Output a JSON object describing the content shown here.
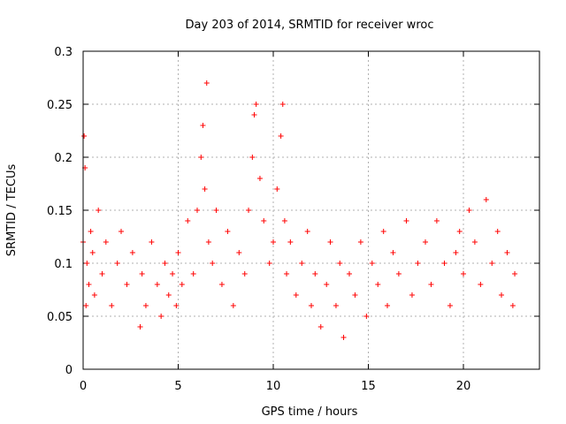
{
  "chart_data": {
    "type": "scatter",
    "title": "Day 203 of 2014, SRMTID for receiver wroc",
    "xlabel": "GPS time / hours",
    "ylabel": "SRMTID / TECUs",
    "xlim": [
      0,
      24
    ],
    "ylim": [
      0,
      0.3
    ],
    "x_ticks": [
      0,
      5,
      10,
      15,
      20
    ],
    "x_tick_labels": [
      "0",
      "5",
      "10",
      "15",
      "20"
    ],
    "y_ticks": [
      0,
      0.05,
      0.1,
      0.15,
      0.2,
      0.25,
      0.3
    ],
    "y_tick_labels": [
      "0",
      "0.05",
      "0.1",
      "0.15",
      "0.2",
      "0.25",
      "0.3"
    ],
    "grid": true,
    "marker": "+",
    "color": "#ff0000",
    "series": [
      {
        "name": "SRMTID",
        "x": [
          0.0,
          0.05,
          0.1,
          0.15,
          0.2,
          0.3,
          0.4,
          0.5,
          0.6,
          0.8,
          1.0,
          1.2,
          1.5,
          1.8,
          2.0,
          2.3,
          2.6,
          3.0,
          3.1,
          3.3,
          3.6,
          3.9,
          4.1,
          4.3,
          4.5,
          4.7,
          4.9,
          5.0,
          5.2,
          5.5,
          5.8,
          6.0,
          6.2,
          6.3,
          6.4,
          6.5,
          6.6,
          6.8,
          7.0,
          7.3,
          7.6,
          7.9,
          8.2,
          8.5,
          8.7,
          8.9,
          9.0,
          9.1,
          9.3,
          9.5,
          9.8,
          10.0,
          10.2,
          10.4,
          10.5,
          10.6,
          10.7,
          10.9,
          11.2,
          11.5,
          11.8,
          12.0,
          12.2,
          12.5,
          12.8,
          13.0,
          13.3,
          13.5,
          13.7,
          14.0,
          14.3,
          14.6,
          14.9,
          15.2,
          15.5,
          15.8,
          16.0,
          16.3,
          16.6,
          17.0,
          17.3,
          17.6,
          18.0,
          18.3,
          18.6,
          19.0,
          19.3,
          19.6,
          19.8,
          20.0,
          20.3,
          20.6,
          20.9,
          21.2,
          21.5,
          21.8,
          22.0,
          22.3,
          22.6,
          22.7
        ],
        "values": [
          0.12,
          0.22,
          0.19,
          0.06,
          0.1,
          0.08,
          0.13,
          0.11,
          0.07,
          0.15,
          0.09,
          0.12,
          0.06,
          0.1,
          0.13,
          0.08,
          0.11,
          0.04,
          0.09,
          0.06,
          0.12,
          0.08,
          0.05,
          0.1,
          0.07,
          0.09,
          0.06,
          0.11,
          0.08,
          0.14,
          0.09,
          0.15,
          0.2,
          0.23,
          0.17,
          0.27,
          0.12,
          0.1,
          0.15,
          0.08,
          0.13,
          0.06,
          0.11,
          0.09,
          0.15,
          0.2,
          0.24,
          0.25,
          0.18,
          0.14,
          0.1,
          0.12,
          0.17,
          0.22,
          0.25,
          0.14,
          0.09,
          0.12,
          0.07,
          0.1,
          0.13,
          0.06,
          0.09,
          0.04,
          0.08,
          0.12,
          0.06,
          0.1,
          0.03,
          0.09,
          0.07,
          0.12,
          0.05,
          0.1,
          0.08,
          0.13,
          0.06,
          0.11,
          0.09,
          0.14,
          0.07,
          0.1,
          0.12,
          0.08,
          0.14,
          0.1,
          0.06,
          0.11,
          0.13,
          0.09,
          0.15,
          0.12,
          0.08,
          0.16,
          0.1,
          0.13,
          0.07,
          0.11,
          0.06,
          0.09
        ]
      }
    ]
  }
}
